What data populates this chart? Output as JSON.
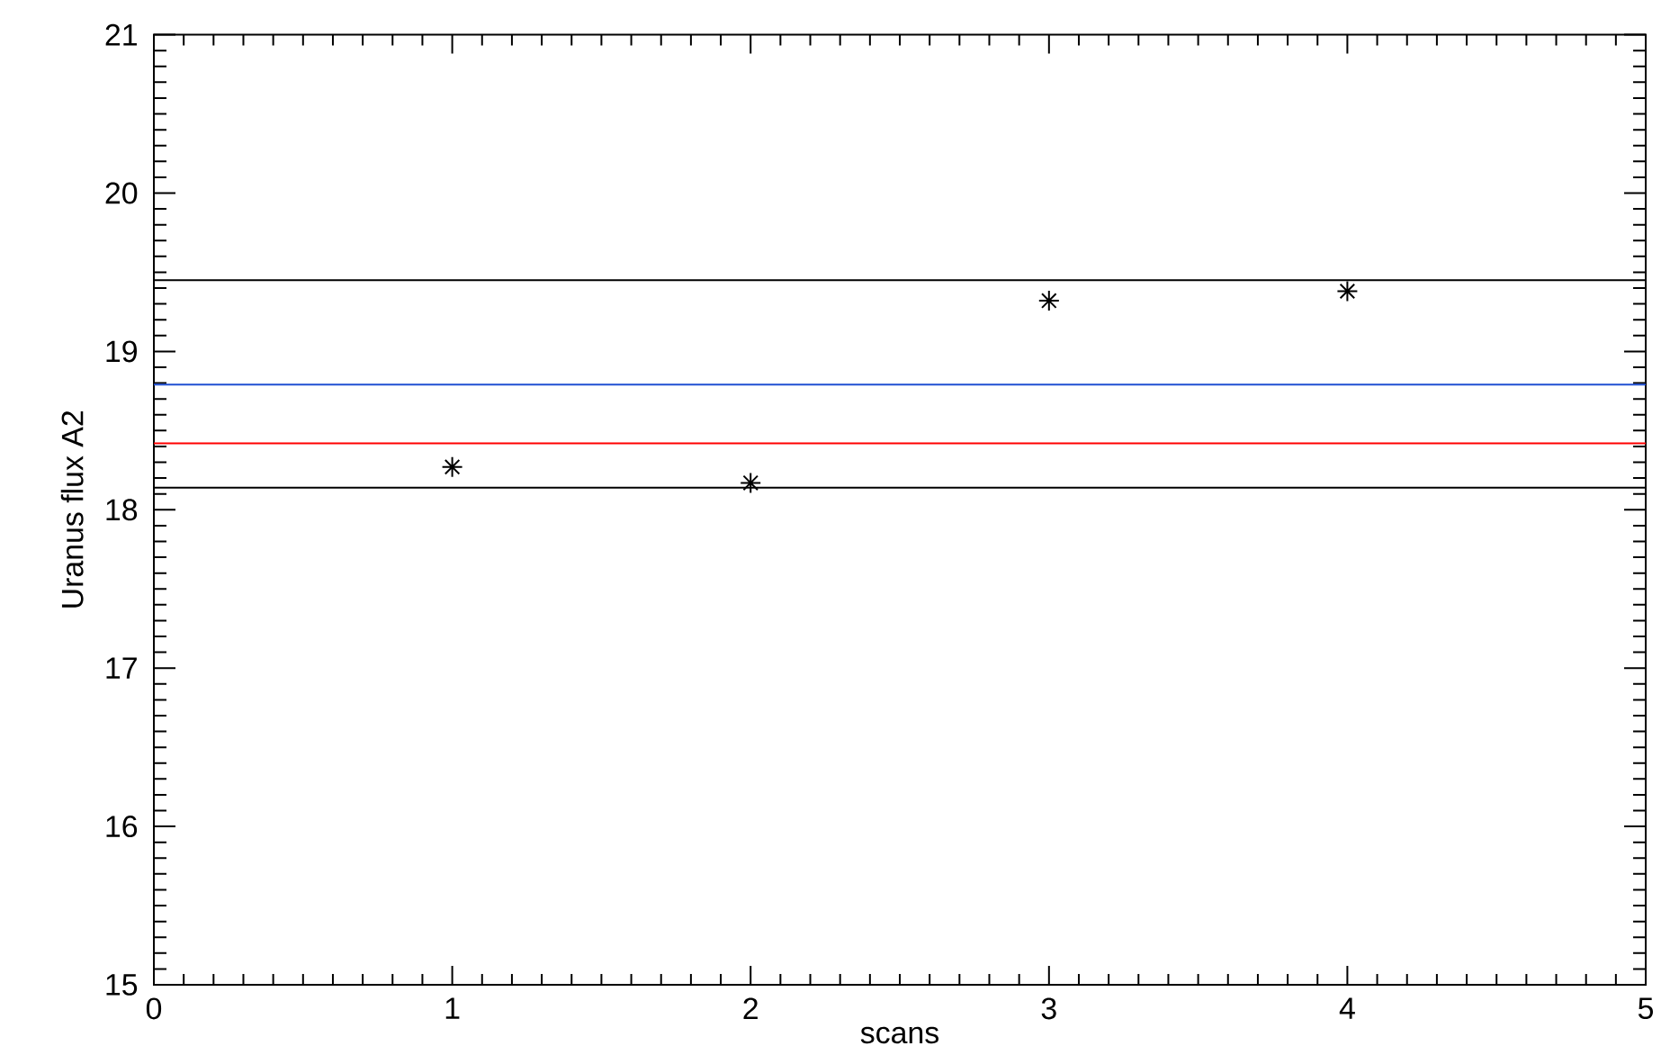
{
  "chart_data": {
    "type": "scatter",
    "xlabel": "scans",
    "ylabel": "Uranus flux A2",
    "x": [
      1,
      2,
      3,
      4
    ],
    "values": [
      18.27,
      18.17,
      19.32,
      19.38
    ],
    "color": "#000000",
    "marker": "cross",
    "xlim": [
      0,
      5
    ],
    "ylim": [
      15,
      21
    ],
    "xticks": [
      0,
      1,
      2,
      3,
      4,
      5
    ],
    "yticks": [
      15,
      16,
      17,
      18,
      19,
      20,
      21
    ],
    "ref_lines": [
      {
        "axis": "y",
        "value": 19.45,
        "color": "#000000"
      },
      {
        "axis": "y",
        "value": 18.79,
        "color": "#1f4fd2"
      },
      {
        "axis": "y",
        "value": 18.42,
        "color": "#ff0000"
      },
      {
        "axis": "y",
        "value": 18.14,
        "color": "#000000"
      }
    ]
  }
}
